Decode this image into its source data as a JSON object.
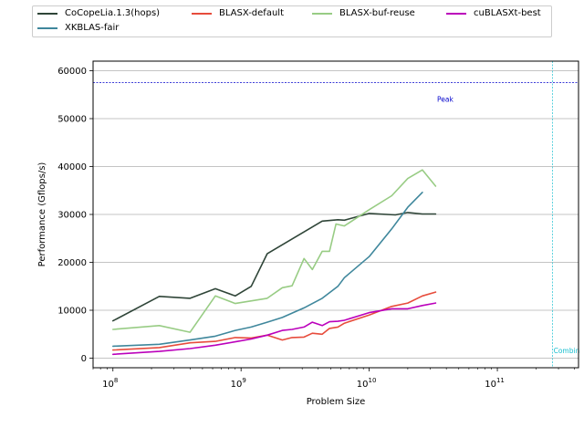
{
  "chart_data": {
    "type": "line",
    "xlabel": "Problem Size",
    "ylabel": "Performance (Gflops/s)",
    "xscale": "log",
    "xlim": [
      70000000,
      430000000000
    ],
    "ylim": [
      -2000,
      62000
    ],
    "xticks": [
      {
        "value": 100000000,
        "label": "10^8"
      },
      {
        "value": 1000000000,
        "label": "10^9"
      },
      {
        "value": 10000000000,
        "label": "10^10"
      },
      {
        "value": 100000000000,
        "label": "10^11"
      }
    ],
    "yticks": [
      0,
      10000,
      20000,
      30000,
      40000,
      50000,
      60000
    ],
    "grid": "horizontal",
    "legend_position": "top",
    "series": [
      {
        "name": "CoCopeLia.1.3(hops)",
        "color": "#2f4538",
        "x": [
          100000000.0,
          230000000.0,
          400000000.0,
          630000000.0,
          900000000.0,
          1200000000.0,
          1600000000.0,
          4300000000.0,
          5700000000.0,
          6400000000.0,
          10000000000.0,
          16000000000.0,
          20000000000.0,
          26000000000.0,
          33000000000.0
        ],
        "y": [
          7800,
          12900,
          12500,
          14500,
          13000,
          15000,
          21800,
          28600,
          28900,
          28800,
          30200,
          29900,
          30400,
          30100,
          30100
        ]
      },
      {
        "name": "XKBLAS-fair",
        "color": "#3f879c",
        "x": [
          100000000.0,
          230000000.0,
          400000000.0,
          630000000.0,
          900000000.0,
          1200000000.0,
          1600000000.0,
          2100000000.0,
          3100000000.0,
          4300000000.0,
          5700000000.0,
          6400000000.0,
          10000000000.0,
          15000000000.0,
          20000000000.0,
          26000000000.0
        ],
        "y": [
          2500,
          2900,
          3800,
          4600,
          5800,
          6500,
          7500,
          8500,
          10500,
          12500,
          15000,
          16800,
          21200,
          27000,
          31500,
          34600
        ]
      },
      {
        "name": "BLASX-default",
        "color": "#e74c3c",
        "x": [
          100000000.0,
          230000000.0,
          400000000.0,
          630000000.0,
          900000000.0,
          1200000000.0,
          1600000000.0,
          2100000000.0,
          2500000000.0,
          3100000000.0,
          3600000000.0,
          4300000000.0,
          4900000000.0,
          5700000000.0,
          6400000000.0,
          10000000000.0,
          15000000000.0,
          20000000000.0,
          26000000000.0,
          33000000000.0
        ],
        "y": [
          1700,
          2200,
          3200,
          3500,
          4300,
          4200,
          4800,
          3800,
          4300,
          4400,
          5200,
          5000,
          6200,
          6500,
          7300,
          9000,
          10800,
          11500,
          13000,
          13800
        ]
      },
      {
        "name": "BLASX-buf-reuse",
        "color": "#98cc84",
        "x": [
          100000000.0,
          230000000.0,
          400000000.0,
          630000000.0,
          900000000.0,
          1600000000.0,
          2100000000.0,
          2500000000.0,
          3100000000.0,
          3600000000.0,
          4300000000.0,
          4900000000.0,
          5500000000.0,
          6400000000.0,
          10000000000.0,
          15000000000.0,
          20000000000.0,
          26000000000.0,
          33000000000.0
        ],
        "y": [
          6000,
          6800,
          5400,
          13000,
          11400,
          12500,
          14700,
          15100,
          20800,
          18500,
          22300,
          22300,
          28000,
          27600,
          31000,
          33900,
          37500,
          39300,
          35900
        ]
      },
      {
        "name": "cuBLASXt-best",
        "color": "#bb00bb",
        "x": [
          100000000.0,
          230000000.0,
          400000000.0,
          630000000.0,
          900000000.0,
          1200000000.0,
          1600000000.0,
          2100000000.0,
          2500000000.0,
          3100000000.0,
          3600000000.0,
          4300000000.0,
          4900000000.0,
          5700000000.0,
          6400000000.0,
          10000000000.0,
          15000000000.0,
          20000000000.0,
          26000000000.0,
          33000000000.0
        ],
        "y": [
          800,
          1400,
          2000,
          2700,
          3400,
          4000,
          4800,
          5800,
          6000,
          6500,
          7500,
          6800,
          7600,
          7700,
          7900,
          9500,
          10300,
          10300,
          11000,
          11500
        ]
      }
    ],
    "reference_lines": [
      {
        "orientation": "horizontal",
        "value": 57500,
        "label": "Peak",
        "color": "#0000cc"
      },
      {
        "orientation": "vertical",
        "value": 270000000000,
        "label": "Combin",
        "color": "#17becf"
      }
    ]
  }
}
